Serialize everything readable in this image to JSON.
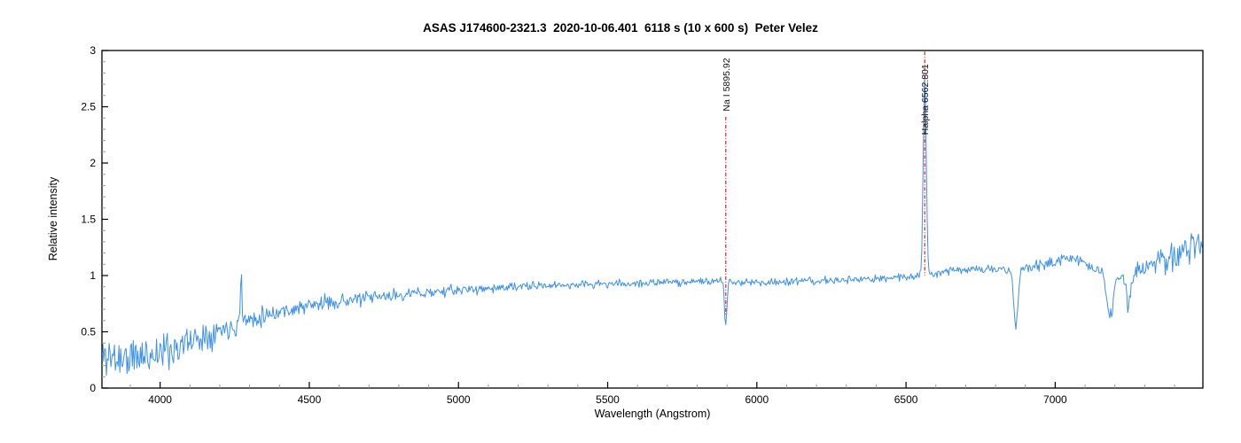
{
  "title": "ASAS J174600-2321.3  2020-10-06.401  6118 s (10 x 600 s)  Peter Velez",
  "chart_data": {
    "type": "line",
    "title": "ASAS J174600-2321.3  2020-10-06.401  6118 s (10 x 600 s)  Peter Velez",
    "xlabel": "Wavelength (Angstrom)",
    "ylabel": "Relative intensity",
    "xlim": [
      3805,
      7495
    ],
    "ylim": [
      0,
      3
    ],
    "grid": "off",
    "legend": "none",
    "series_name": "relative-intensity-spectrum",
    "x_major_ticks": [
      4000,
      4500,
      5000,
      5500,
      6000,
      6500,
      7000
    ],
    "x_major_tick_labels": [
      "4000",
      "4500",
      "5000",
      "5500",
      "6000",
      "6500",
      "7000"
    ],
    "x_minor_tick_step": 100,
    "y_major_ticks": [
      0,
      0.5,
      1,
      1.5,
      2,
      2.5,
      3
    ],
    "y_major_tick_labels": [
      "0",
      "0.5",
      "1",
      "1.5",
      "2",
      "2.5",
      "3"
    ],
    "y_minor_tick_step": 0.1,
    "colors": {
      "spectrum_line": "#3D91EE",
      "marker_line": "#E02020",
      "axis": "#000000",
      "minor_tick": "#999999",
      "background": "#FFFFFF",
      "text": "#000000"
    },
    "sample_step_angstrom": 3,
    "noise_seed": 11,
    "continuum_points": [
      [
        3805,
        0.3
      ],
      [
        3850,
        0.27
      ],
      [
        3900,
        0.26
      ],
      [
        3950,
        0.29
      ],
      [
        4000,
        0.32
      ],
      [
        4060,
        0.37
      ],
      [
        4120,
        0.44
      ],
      [
        4180,
        0.5
      ],
      [
        4270,
        0.58
      ],
      [
        4360,
        0.66
      ],
      [
        4460,
        0.71
      ],
      [
        4560,
        0.76
      ],
      [
        4700,
        0.8
      ],
      [
        4850,
        0.84
      ],
      [
        5000,
        0.87
      ],
      [
        5200,
        0.9
      ],
      [
        5400,
        0.92
      ],
      [
        5600,
        0.93
      ],
      [
        5800,
        0.95
      ],
      [
        6000,
        0.94
      ],
      [
        6200,
        0.95
      ],
      [
        6400,
        0.97
      ],
      [
        6550,
        1.0
      ],
      [
        6650,
        1.05
      ],
      [
        6760,
        1.06
      ],
      [
        6860,
        1.04
      ],
      [
        6960,
        1.1
      ],
      [
        7050,
        1.16
      ],
      [
        7130,
        1.07
      ],
      [
        7250,
        1.0
      ],
      [
        7330,
        1.1
      ],
      [
        7420,
        1.22
      ],
      [
        7495,
        1.32
      ]
    ],
    "noise_amplitude_points": [
      [
        3805,
        0.3
      ],
      [
        3900,
        0.3
      ],
      [
        4000,
        0.26
      ],
      [
        4150,
        0.19
      ],
      [
        4300,
        0.13
      ],
      [
        4500,
        0.1
      ],
      [
        4700,
        0.085
      ],
      [
        5000,
        0.065
      ],
      [
        5300,
        0.055
      ],
      [
        5700,
        0.05
      ],
      [
        6100,
        0.05
      ],
      [
        6500,
        0.055
      ],
      [
        6800,
        0.06
      ],
      [
        7000,
        0.08
      ],
      [
        7150,
        0.09
      ],
      [
        7300,
        0.15
      ],
      [
        7400,
        0.21
      ],
      [
        7495,
        0.26
      ]
    ],
    "spectral_features": [
      {
        "name": "H-alpha emission peak",
        "center": 6562.801,
        "amplitude": 1.76,
        "sigma": 5,
        "peak_intensity": 2.76
      },
      {
        "name": "Na I absorption",
        "center": 5895.92,
        "amplitude": -0.4,
        "sigma": 4,
        "min_intensity": 0.57
      },
      {
        "name": "telluric O2 B-band dip",
        "center": 6869,
        "amplitude": -0.5,
        "sigma": 7,
        "min_intensity": 0.54
      },
      {
        "name": "telluric H2O band dip",
        "center": 7185,
        "amplitude": -0.4,
        "sigma": 12,
        "min_intensity": 0.58
      },
      {
        "name": "telluric H2O band dip 2",
        "center": 7245,
        "amplitude": -0.28,
        "sigma": 8,
        "min_intensity": 0.7
      },
      {
        "name": "noise spike near 4270",
        "center": 4272,
        "amplitude": 0.42,
        "sigma": 3,
        "peak_intensity": 1.1
      }
    ],
    "annotations": [
      {
        "label": "Na I 5895.92",
        "wavelength": 5895.92,
        "line_top_intensity": 2.41,
        "line_bottom_intensity": 0.65,
        "text_bottom_intensity": 2.46,
        "rotation_deg": -90
      },
      {
        "label": "Halpha 6562.801",
        "wavelength": 6562.801,
        "line_top_intensity": 2.99,
        "line_bottom_intensity": 1.0,
        "text_bottom_intensity": 2.25,
        "rotation_deg": -90
      }
    ]
  }
}
